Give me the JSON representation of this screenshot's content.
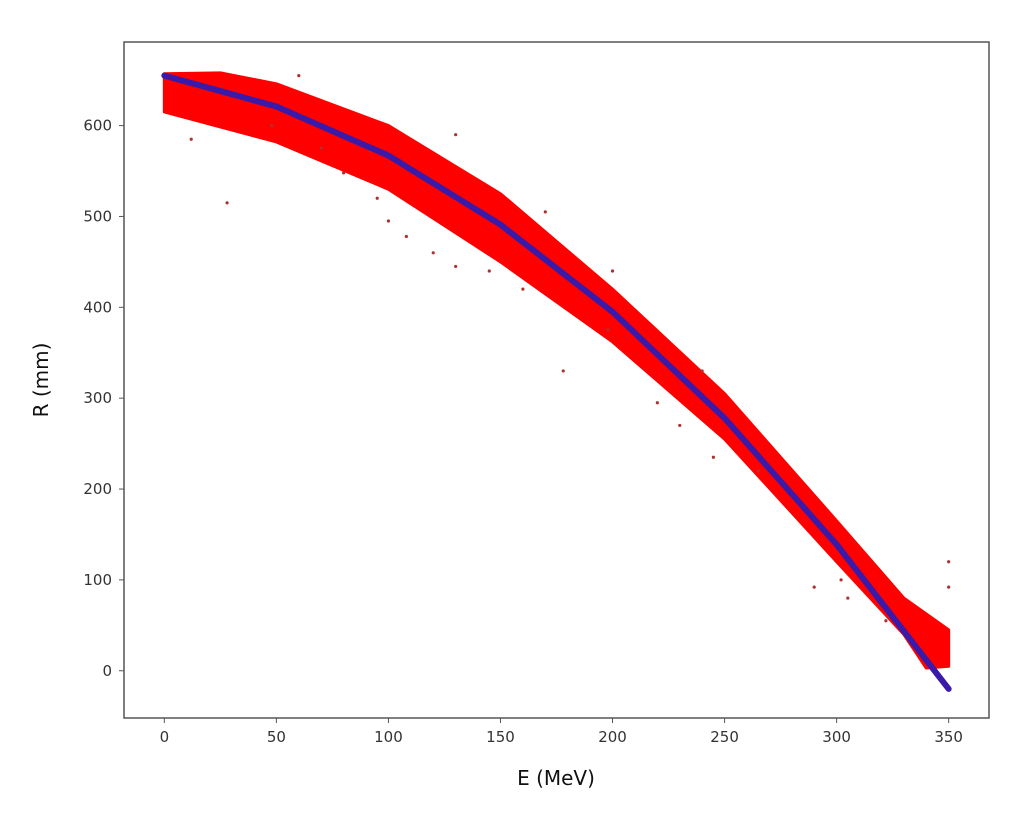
{
  "chart_data": {
    "type": "scatter",
    "title": "",
    "xlabel": "E (MeV)",
    "ylabel": "R (mm)",
    "xlim": [
      -18,
      368
    ],
    "ylim": [
      -52,
      692
    ],
    "xticks": [
      0,
      50,
      100,
      150,
      200,
      250,
      300,
      350
    ],
    "yticks": [
      0,
      100,
      200,
      300,
      400,
      500,
      600
    ],
    "grid": false,
    "colors": {
      "scatter": "#ff0000",
      "outlier": "#b03030",
      "fit": "#3a1aa8"
    },
    "scatter_band": {
      "upper": [
        [
          0,
          657
        ],
        [
          25,
          658
        ],
        [
          50,
          646
        ],
        [
          100,
          600
        ],
        [
          150,
          525
        ],
        [
          200,
          420
        ],
        [
          250,
          305
        ],
        [
          300,
          165
        ],
        [
          330,
          80
        ],
        [
          350,
          45
        ]
      ],
      "lower": [
        [
          350,
          5
        ],
        [
          340,
          3
        ],
        [
          330,
          40
        ],
        [
          300,
          120
        ],
        [
          250,
          255
        ],
        [
          200,
          362
        ],
        [
          150,
          450
        ],
        [
          100,
          530
        ],
        [
          50,
          582
        ],
        [
          0,
          615
        ]
      ]
    },
    "outliers": [
      [
        28,
        515
      ],
      [
        12,
        585
      ],
      [
        48,
        600
      ],
      [
        70,
        575
      ],
      [
        80,
        548
      ],
      [
        92,
        572
      ],
      [
        95,
        520
      ],
      [
        100,
        495
      ],
      [
        108,
        478
      ],
      [
        120,
        460
      ],
      [
        130,
        445
      ],
      [
        145,
        440
      ],
      [
        160,
        420
      ],
      [
        178,
        330
      ],
      [
        198,
        375
      ],
      [
        220,
        295
      ],
      [
        230,
        270
      ],
      [
        245,
        235
      ],
      [
        265,
        220
      ],
      [
        290,
        92
      ],
      [
        302,
        100
      ],
      [
        305,
        80
      ],
      [
        322,
        55
      ],
      [
        350,
        120
      ],
      [
        350,
        92
      ],
      [
        200,
        440
      ],
      [
        170,
        505
      ],
      [
        130,
        590
      ],
      [
        60,
        655
      ],
      [
        240,
        330
      ]
    ],
    "fit_curve": [
      [
        0,
        655
      ],
      [
        50,
        621
      ],
      [
        100,
        567
      ],
      [
        150,
        491
      ],
      [
        200,
        395
      ],
      [
        250,
        278
      ],
      [
        300,
        139
      ],
      [
        350,
        -20
      ]
    ]
  }
}
